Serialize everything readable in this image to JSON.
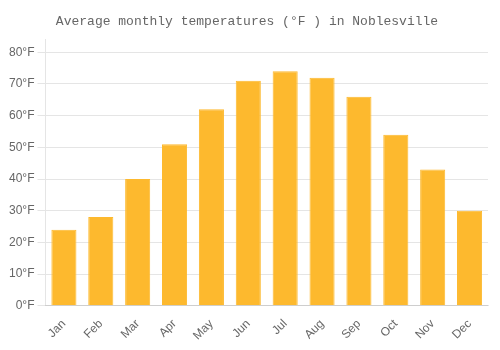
{
  "chart_data": {
    "type": "bar",
    "title": "Average monthly temperatures (°F ) in Noblesville",
    "categories": [
      "Jan",
      "Feb",
      "Mar",
      "Apr",
      "May",
      "Jun",
      "Jul",
      "Aug",
      "Sep",
      "Oct",
      "Nov",
      "Dec"
    ],
    "values": [
      24,
      28,
      40,
      51,
      62,
      71,
      74,
      72,
      66,
      54,
      43,
      30
    ],
    "color": "#FDB92E",
    "ylim": [
      0,
      84
    ],
    "yticks": [
      {
        "value": 0,
        "label": "0°F"
      },
      {
        "value": 10,
        "label": "10°F"
      },
      {
        "value": 20,
        "label": "20°F"
      },
      {
        "value": 30,
        "label": "30°F"
      },
      {
        "value": 40,
        "label": "40°F"
      },
      {
        "value": 50,
        "label": "50°F"
      },
      {
        "value": 60,
        "label": "60°F"
      },
      {
        "value": 70,
        "label": "70°F"
      },
      {
        "value": 80,
        "label": "80°F"
      }
    ],
    "grid": true
  }
}
